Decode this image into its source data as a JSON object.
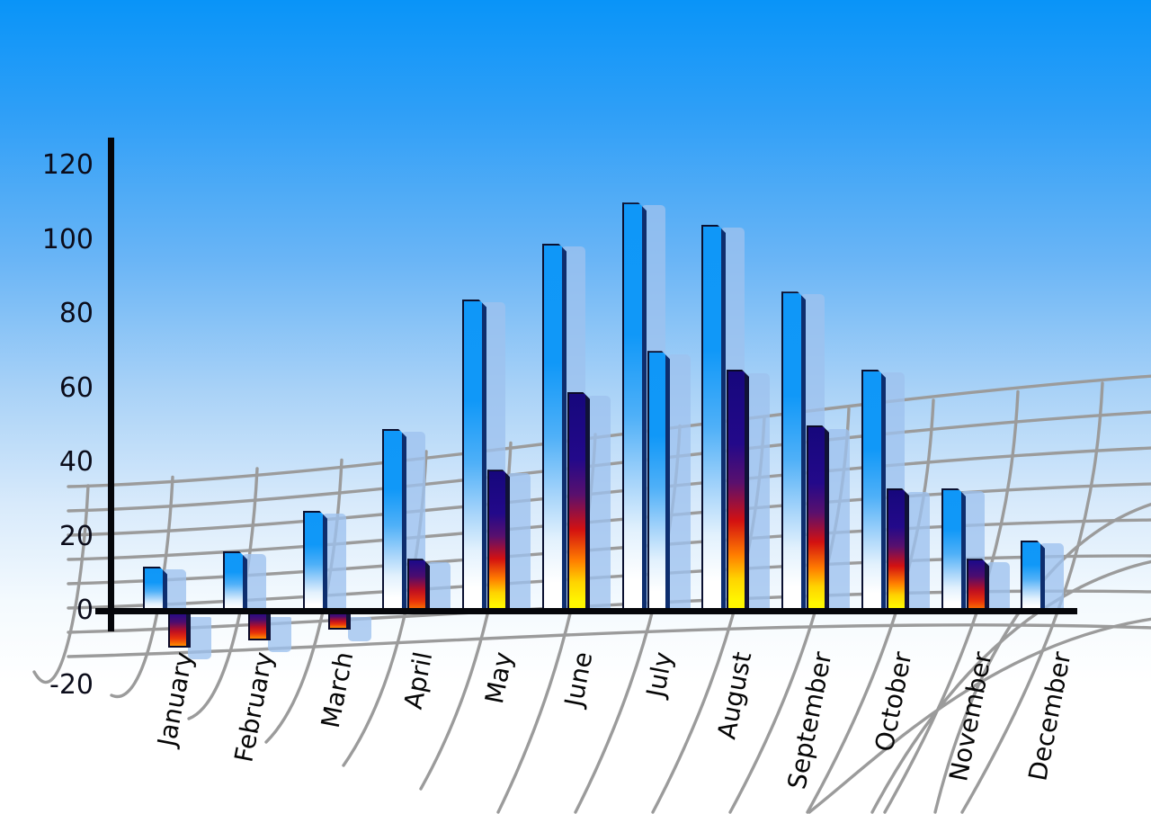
{
  "chart_data": {
    "type": "bar",
    "title": "",
    "xlabel": "",
    "ylabel": "",
    "categories": [
      "January",
      "February",
      "March",
      "April",
      "May",
      "June",
      "July",
      "August",
      "September",
      "October",
      "November",
      "December"
    ],
    "series": [
      {
        "name": "Series 1 (blue gradient bars)",
        "values": [
          12,
          16,
          27,
          49,
          84,
          99,
          110,
          104,
          86,
          65,
          33,
          19
        ]
      },
      {
        "name": "Series 2 (heat gradient bars)",
        "values": [
          -10,
          -8,
          -5,
          14,
          38,
          59,
          70,
          65,
          50,
          33,
          14,
          null
        ],
        "bar_styles": [
          "heat",
          "heat",
          "heat",
          "heat",
          "heat",
          "heat",
          "cool",
          "heat",
          "heat",
          "heat",
          "heat",
          null
        ]
      }
    ],
    "ylim": [
      -20,
      120
    ],
    "yticks": [
      120,
      100,
      80,
      60,
      40,
      20,
      0,
      -20
    ],
    "legend": "none",
    "grid_style": "curved perspective mesh floor",
    "notes": "each bar has a translucent light-blue drop-shadow copy offset to the right; December has no second-series bar; July second-series bar is blue like series 1"
  },
  "colors": {
    "background_top": "#0994f8",
    "background_bottom": "#ffffff",
    "bar_blue_top": "#0f97f8",
    "bar_blue_bottom": "#ffffff",
    "bar_edge_dark": "#0e2e6e",
    "heat_navy": "#16077c",
    "heat_red": "#d31111",
    "heat_orange": "#ff7c00",
    "heat_yellow": "#fff600",
    "shadow_bar": "#9ec2ee",
    "grid_line": "#9b9b9b",
    "axis_line": "#05060a",
    "label_text": "#0b0c1a"
  }
}
